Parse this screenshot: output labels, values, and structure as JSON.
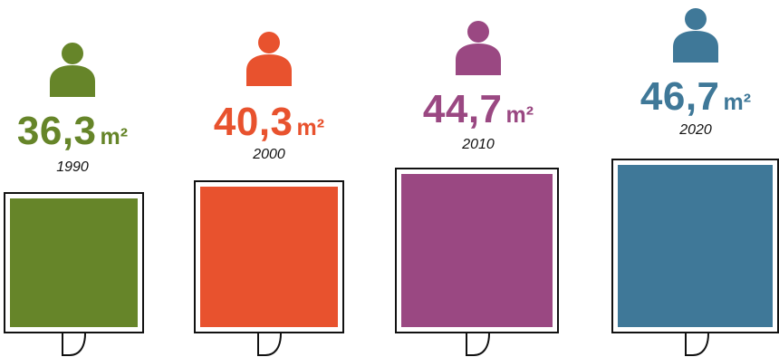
{
  "unit": "m²",
  "chart_data": {
    "type": "pictogram",
    "categories": [
      "1990",
      "2000",
      "2010",
      "2020"
    ],
    "values": [
      36.3,
      40.3,
      44.7,
      46.7
    ],
    "value_labels": [
      "36,3",
      "40,3",
      "44,7",
      "46,7"
    ],
    "unit": "m²",
    "colors": [
      "#668529",
      "#e8522e",
      "#9a4882",
      "#3f7898"
    ],
    "icon": "person-icon"
  }
}
